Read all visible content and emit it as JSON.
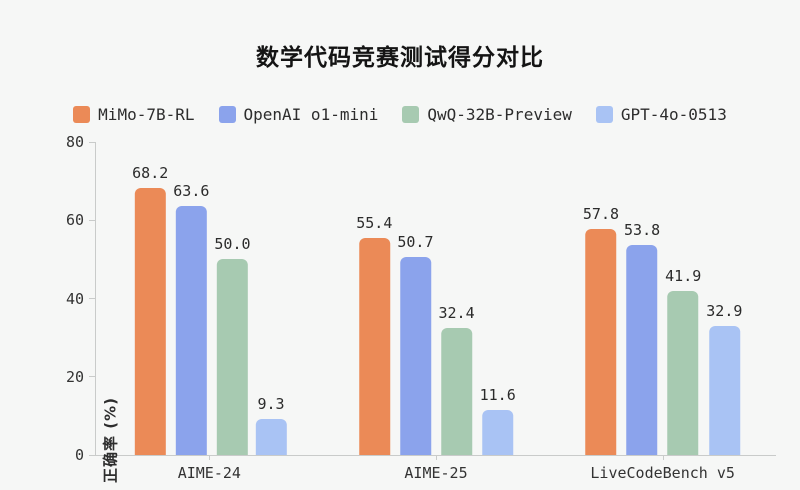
{
  "chart_data": {
    "type": "bar",
    "title": "数学代码竞赛测试得分对比",
    "ylabel": "正确率 (%)",
    "xlabel": "",
    "categories": [
      "AIME-24",
      "AIME-25",
      "LiveCodeBench v5"
    ],
    "series": [
      {
        "name": "MiMo-7B-RL",
        "color": "#eb8a57",
        "values": [
          68.2,
          55.4,
          57.8
        ]
      },
      {
        "name": "OpenAI o1-mini",
        "color": "#8ba3ec",
        "values": [
          63.6,
          50.7,
          53.8
        ]
      },
      {
        "name": "QwQ-32B-Preview",
        "color": "#a7cab1",
        "values": [
          50.0,
          32.4,
          41.9
        ]
      },
      {
        "name": "GPT-4o-0513",
        "color": "#a9c3f4",
        "values": [
          9.3,
          11.6,
          32.9
        ]
      }
    ],
    "ylim": [
      0,
      80
    ],
    "yticks": [
      0,
      20,
      40,
      60,
      80
    ],
    "grid": false,
    "legend_position": "top",
    "value_labels": true,
    "colors": {
      "background": "#f6f7f6",
      "axis": "#c9cbca",
      "text": "#2b2b2b",
      "title_text": "#141414"
    }
  }
}
